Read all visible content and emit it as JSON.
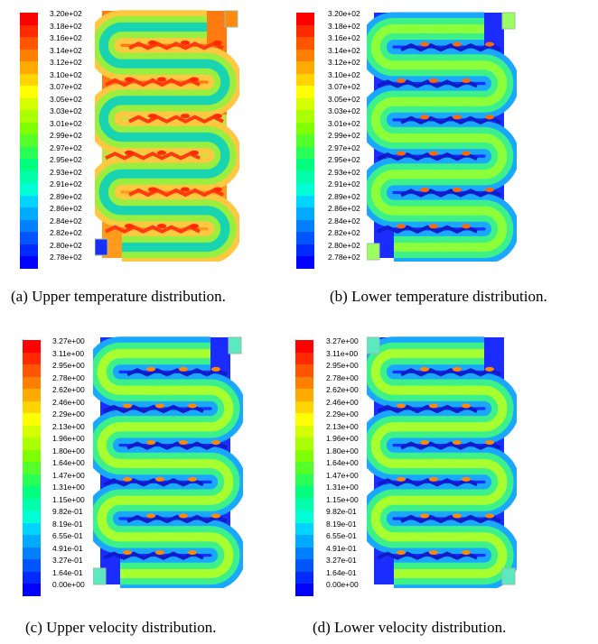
{
  "panels": [
    {
      "id": "a",
      "caption": "(a) Upper temperature distribution.",
      "palette": "temperature-upper",
      "ticks": [
        "3.20e+02",
        "3.18e+02",
        "3.16e+02",
        "3.14e+02",
        "3.12e+02",
        "3.10e+02",
        "3.07e+02",
        "3.05e+02",
        "3.03e+02",
        "3.01e+02",
        "2.99e+02",
        "2.97e+02",
        "2.95e+02",
        "2.93e+02",
        "2.91e+02",
        "2.89e+02",
        "2.86e+02",
        "2.84e+02",
        "2.82e+02",
        "2.80e+02",
        "2.78e+02"
      ]
    },
    {
      "id": "b",
      "caption": "(b) Lower temperature distribution.",
      "palette": "temperature-lower",
      "ticks": [
        "3.20e+02",
        "3.18e+02",
        "3.16e+02",
        "3.14e+02",
        "3.12e+02",
        "3.10e+02",
        "3.07e+02",
        "3.05e+02",
        "3.03e+02",
        "3.01e+02",
        "2.99e+02",
        "2.97e+02",
        "2.95e+02",
        "2.93e+02",
        "2.91e+02",
        "2.89e+02",
        "2.86e+02",
        "2.84e+02",
        "2.82e+02",
        "2.80e+02",
        "2.78e+02"
      ]
    },
    {
      "id": "c",
      "caption": "(c) Upper velocity distribution.",
      "palette": "velocity-upper",
      "ticks": [
        "3.27e+00",
        "3.11e+00",
        "2.95e+00",
        "2.78e+00",
        "2.62e+00",
        "2.46e+00",
        "2.29e+00",
        "2.13e+00",
        "1.96e+00",
        "1.80e+00",
        "1.64e+00",
        "1.47e+00",
        "1.31e+00",
        "1.15e+00",
        "9.82e-01",
        "8.19e-01",
        "6.55e-01",
        "4.91e-01",
        "3.27e-01",
        "1.64e-01",
        "0.00e+00"
      ]
    },
    {
      "id": "d",
      "caption": "(d) Lower velocity distribution.",
      "palette": "velocity-lower",
      "ticks": [
        "3.27e+00",
        "3.11e+00",
        "2.95e+00",
        "2.78e+00",
        "2.62e+00",
        "2.46e+00",
        "2.29e+00",
        "2.13e+00",
        "1.96e+00",
        "1.80e+00",
        "1.64e+00",
        "1.47e+00",
        "1.31e+00",
        "1.15e+00",
        "9.82e-01",
        "8.19e-01",
        "6.55e-01",
        "4.91e-01",
        "3.27e-01",
        "1.64e-01",
        "0.00e+00"
      ]
    }
  ],
  "colormap": [
    "#ff0000",
    "#ff2a00",
    "#ff5500",
    "#ff7f00",
    "#ffaa00",
    "#ffd400",
    "#ffff00",
    "#d4ff00",
    "#aaff00",
    "#7fff00",
    "#55ff2a",
    "#2aff55",
    "#00ff7f",
    "#00ffaa",
    "#00ffd4",
    "#00d4ff",
    "#00aaff",
    "#007fff",
    "#0055ff",
    "#002aff",
    "#0000ff"
  ]
}
